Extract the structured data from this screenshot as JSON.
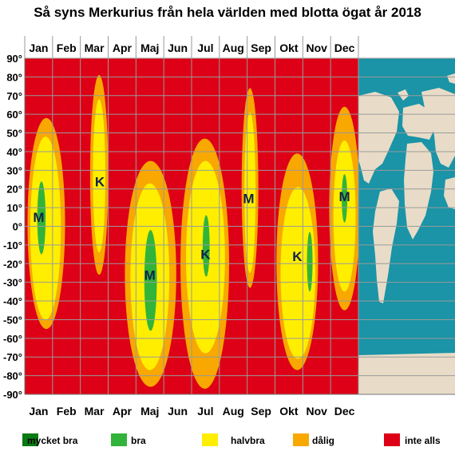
{
  "title": "Så syns Merkurius från hela världen med blotta ögat år 2018",
  "chart_data": {
    "type": "heatmap",
    "months": [
      "Jan",
      "Feb",
      "Mar",
      "Apr",
      "Maj",
      "Jun",
      "Jul",
      "Aug",
      "Sep",
      "Okt",
      "Nov",
      "Dec"
    ],
    "y_ticks": [
      "90°",
      "80°",
      "70°",
      "60°",
      "50°",
      "40°",
      "30°",
      "20°",
      "10°",
      "0°",
      "-10°",
      "-20°",
      "-30°",
      "-40°",
      "-50°",
      "-60°",
      "-70°",
      "-80°",
      "-90°"
    ],
    "ylim": [
      -90,
      90
    ],
    "grid": true,
    "legend": [
      {
        "label": "mycket bra",
        "color": "#0a7a12"
      },
      {
        "label": "bra",
        "color": "#32b43a"
      },
      {
        "label": "halvbra",
        "color": "#ffee00"
      },
      {
        "label": "dålig",
        "color": "#f8a800"
      },
      {
        "label": "inte alls",
        "color": "#dd0016"
      }
    ],
    "background_color": "#dd0016",
    "windows": [
      {
        "center_month": 0.0,
        "label": "M",
        "label_lat": 5,
        "bands": [
          {
            "level": "dålig",
            "m0": -0.4,
            "m1": 0.95,
            "lat0": -55,
            "lat1": 58
          },
          {
            "level": "halvbra",
            "m0": -0.3,
            "m1": 0.8,
            "lat0": -50,
            "lat1": 48
          },
          {
            "level": "bra",
            "m0": -0.05,
            "m1": 0.25,
            "lat0": -15,
            "lat1": 24
          }
        ]
      },
      {
        "center_month": 2.2,
        "label": "K",
        "label_lat": 24,
        "bands": [
          {
            "level": "dålig",
            "m0": 1.85,
            "m1": 2.5,
            "lat0": -26,
            "lat1": 81
          },
          {
            "level": "halvbra",
            "m0": 1.95,
            "m1": 2.4,
            "lat0": -14,
            "lat1": 68
          }
        ]
      },
      {
        "center_month": 4.0,
        "label": "M",
        "label_lat": -26,
        "bands": [
          {
            "level": "dålig",
            "m0": 3.1,
            "m1": 4.95,
            "lat0": -86,
            "lat1": 35
          },
          {
            "level": "halvbra",
            "m0": 3.3,
            "m1": 4.7,
            "lat0": -77,
            "lat1": 23
          },
          {
            "level": "bra",
            "m0": 3.8,
            "m1": 4.25,
            "lat0": -56,
            "lat1": -2
          }
        ]
      },
      {
        "center_month": 6.0,
        "label": "K",
        "label_lat": -15,
        "bands": [
          {
            "level": "dålig",
            "m0": 5.1,
            "m1": 6.85,
            "lat0": -87,
            "lat1": 47
          },
          {
            "level": "halvbra",
            "m0": 5.3,
            "m1": 6.7,
            "lat0": -68,
            "lat1": 35
          },
          {
            "level": "bra",
            "m0": 5.9,
            "m1": 6.15,
            "lat0": -27,
            "lat1": 6
          }
        ]
      },
      {
        "center_month": 7.55,
        "label": "M",
        "label_lat": 15,
        "bands": [
          {
            "level": "dålig",
            "m0": 7.3,
            "m1": 7.9,
            "lat0": -33,
            "lat1": 74
          },
          {
            "level": "halvbra",
            "m0": 7.4,
            "m1": 7.8,
            "lat0": -25,
            "lat1": 61
          }
        ]
      },
      {
        "center_month": 9.3,
        "label": "K",
        "label_lat": -16,
        "bands": [
          {
            "level": "dålig",
            "m0": 8.55,
            "m1": 10.05,
            "lat0": -77,
            "lat1": 39
          },
          {
            "level": "halvbra",
            "m0": 8.7,
            "m1": 9.95,
            "lat0": -71,
            "lat1": 21
          },
          {
            "level": "bra",
            "m0": 9.65,
            "m1": 9.85,
            "lat0": -35,
            "lat1": -3
          }
        ]
      },
      {
        "center_month": 11.0,
        "label": "M",
        "label_lat": 16,
        "bands": [
          {
            "level": "dålig",
            "m0": 10.45,
            "m1": 11.55,
            "lat0": -45,
            "lat1": 64
          },
          {
            "level": "halvbra",
            "m0": 10.6,
            "m1": 11.4,
            "lat0": -35,
            "lat1": 46
          },
          {
            "level": "bra",
            "m0": 10.9,
            "m1": 11.1,
            "lat0": 2,
            "lat1": 28
          }
        ]
      }
    ]
  },
  "world_map": {
    "ocean_color": "#1a94a6",
    "land_color": "#e8dcc8"
  }
}
